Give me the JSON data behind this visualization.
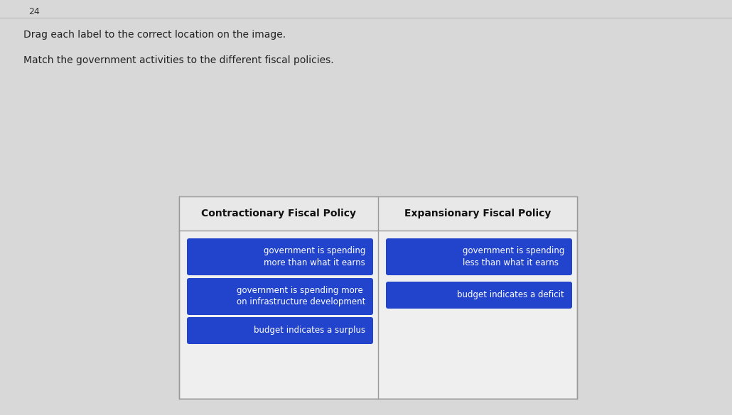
{
  "background_color": "#d8d8d8",
  "question_number": "24",
  "instruction_line1": "Drag each label to the correct location on the image.",
  "instruction_line2": "Match the government activities to the different fiscal policies.",
  "table": {
    "left_header": "Contractionary Fiscal Policy",
    "right_header": "Expansionary Fiscal Policy",
    "left_items": [
      "government is spending\nmore than what it earns",
      "government is spending more\non infrastructure development",
      "budget indicates a surplus"
    ],
    "right_items": [
      "government is spending\nless than what it earns",
      "budget indicates a deficit"
    ]
  },
  "box_color": "#2244cc",
  "box_text_color": "#ffffff",
  "header_text_color": "#111111",
  "border_color": "#999999",
  "table_bg": "#efefef",
  "header_bg": "#e8e8e8"
}
